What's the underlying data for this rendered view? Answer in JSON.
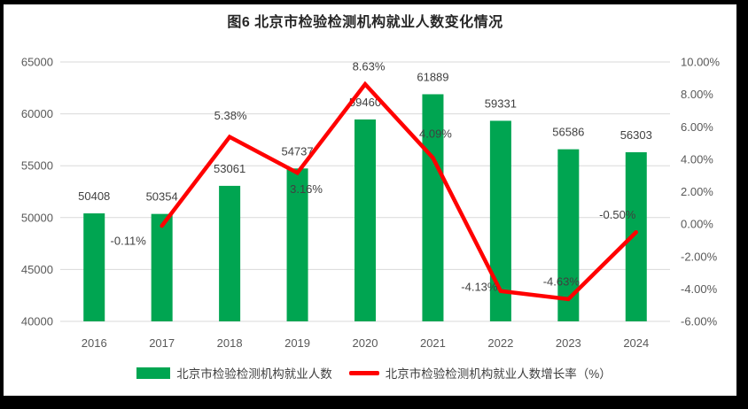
{
  "frame": {
    "background_color": "#000000",
    "card_color": "#FFFFFF"
  },
  "styles": {
    "grid_color": "#D9D9D9",
    "axis_text_color": "#595959",
    "data_label_color": "#404040",
    "title_color": "#262626",
    "bar_color": "#00A551",
    "line_color": "#FF0000"
  },
  "chart_data": {
    "type": "bar",
    "subtype": "combo-bar-line-dual-axis",
    "title": "图6 北京市检验检测机构就业人数变化情况",
    "categories": [
      "2016",
      "2017",
      "2018",
      "2019",
      "2020",
      "2021",
      "2022",
      "2023",
      "2024"
    ],
    "series": [
      {
        "name": "北京市检验检测机构就业人数",
        "type": "bar",
        "axis": "left",
        "color": "#00A551",
        "values": [
          50408,
          50354,
          53061,
          54737,
          59460,
          61889,
          59331,
          56586,
          56303
        ],
        "labels": [
          "50408",
          "50354",
          "53061",
          "54737",
          "59460",
          "61889",
          "59331",
          "56586",
          "56303"
        ]
      },
      {
        "name": "北京市检验检测机构就业人数增长率（%）",
        "type": "line",
        "axis": "right",
        "color": "#FF0000",
        "values": [
          null,
          -0.11,
          5.38,
          3.16,
          8.63,
          4.09,
          -4.13,
          -4.63,
          -0.5
        ],
        "labels": [
          "",
          "-0.11%",
          "5.38%",
          "3.16%",
          "8.63%",
          "4.09%",
          "-4.13%",
          "-4.63%",
          "-0.50%"
        ],
        "label_offsets": [
          [
            0,
            0
          ],
          [
            -38,
            17
          ],
          [
            1,
            -24
          ],
          [
            10,
            18
          ],
          [
            4,
            -20
          ],
          [
            3,
            -27
          ],
          [
            -24,
            -5
          ],
          [
            -8,
            -20
          ],
          [
            -21,
            -20
          ]
        ]
      }
    ],
    "left_axis": {
      "min": 40000,
      "max": 65000,
      "tick_step": 5000,
      "tick_labels": [
        "65000",
        "60000",
        "55000",
        "50000",
        "45000",
        "40000"
      ]
    },
    "right_axis": {
      "min": -6,
      "max": 10,
      "tick_step": 2,
      "tick_labels": [
        "10.00%",
        "8.00%",
        "6.00%",
        "4.00%",
        "2.00%",
        "0.00%",
        "-2.00%",
        "-4.00%",
        "-6.00%"
      ]
    },
    "grid": true,
    "legend_position": "bottom"
  }
}
